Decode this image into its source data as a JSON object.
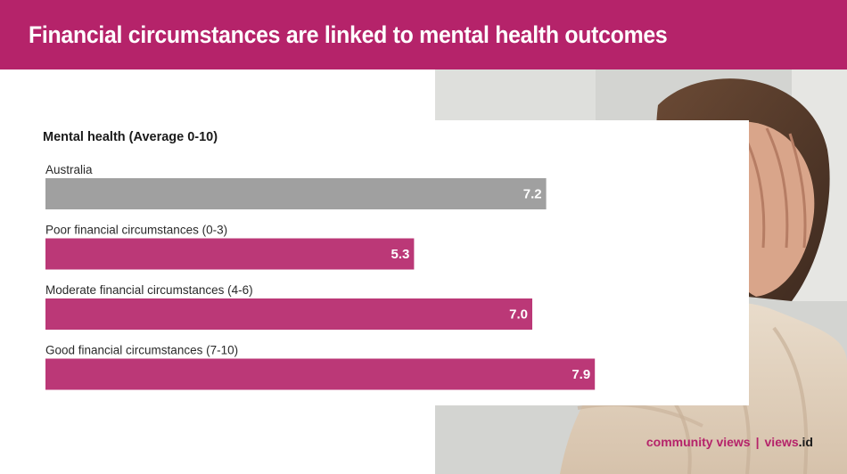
{
  "header": {
    "title": "Financial circumstances are linked to mental health outcomes"
  },
  "colors": {
    "accent": "#b5236a",
    "bar_highlight": "#bb3877",
    "bar_reference": "#a0a0a0"
  },
  "chart_data": {
    "type": "bar",
    "orientation": "horizontal",
    "title": "Mental health (Average 0-10)",
    "categories": [
      "Australia",
      "Poor financial circumstances (0-3)",
      "Moderate financial circumstances (4-6)",
      "Good financial circumstances (7-10)"
    ],
    "values": [
      7.2,
      5.3,
      7.0,
      7.9
    ],
    "value_labels": [
      "7.2",
      "5.3",
      "7.0",
      "7.9"
    ],
    "bar_colors": [
      "#a0a0a0",
      "#bb3877",
      "#bb3877",
      "#bb3877"
    ],
    "xlim": [
      0,
      10
    ],
    "grid": false,
    "legend": "none"
  },
  "footer": {
    "brand": "community views",
    "separator": "|",
    "site": "views",
    "site_tld": ".id"
  }
}
